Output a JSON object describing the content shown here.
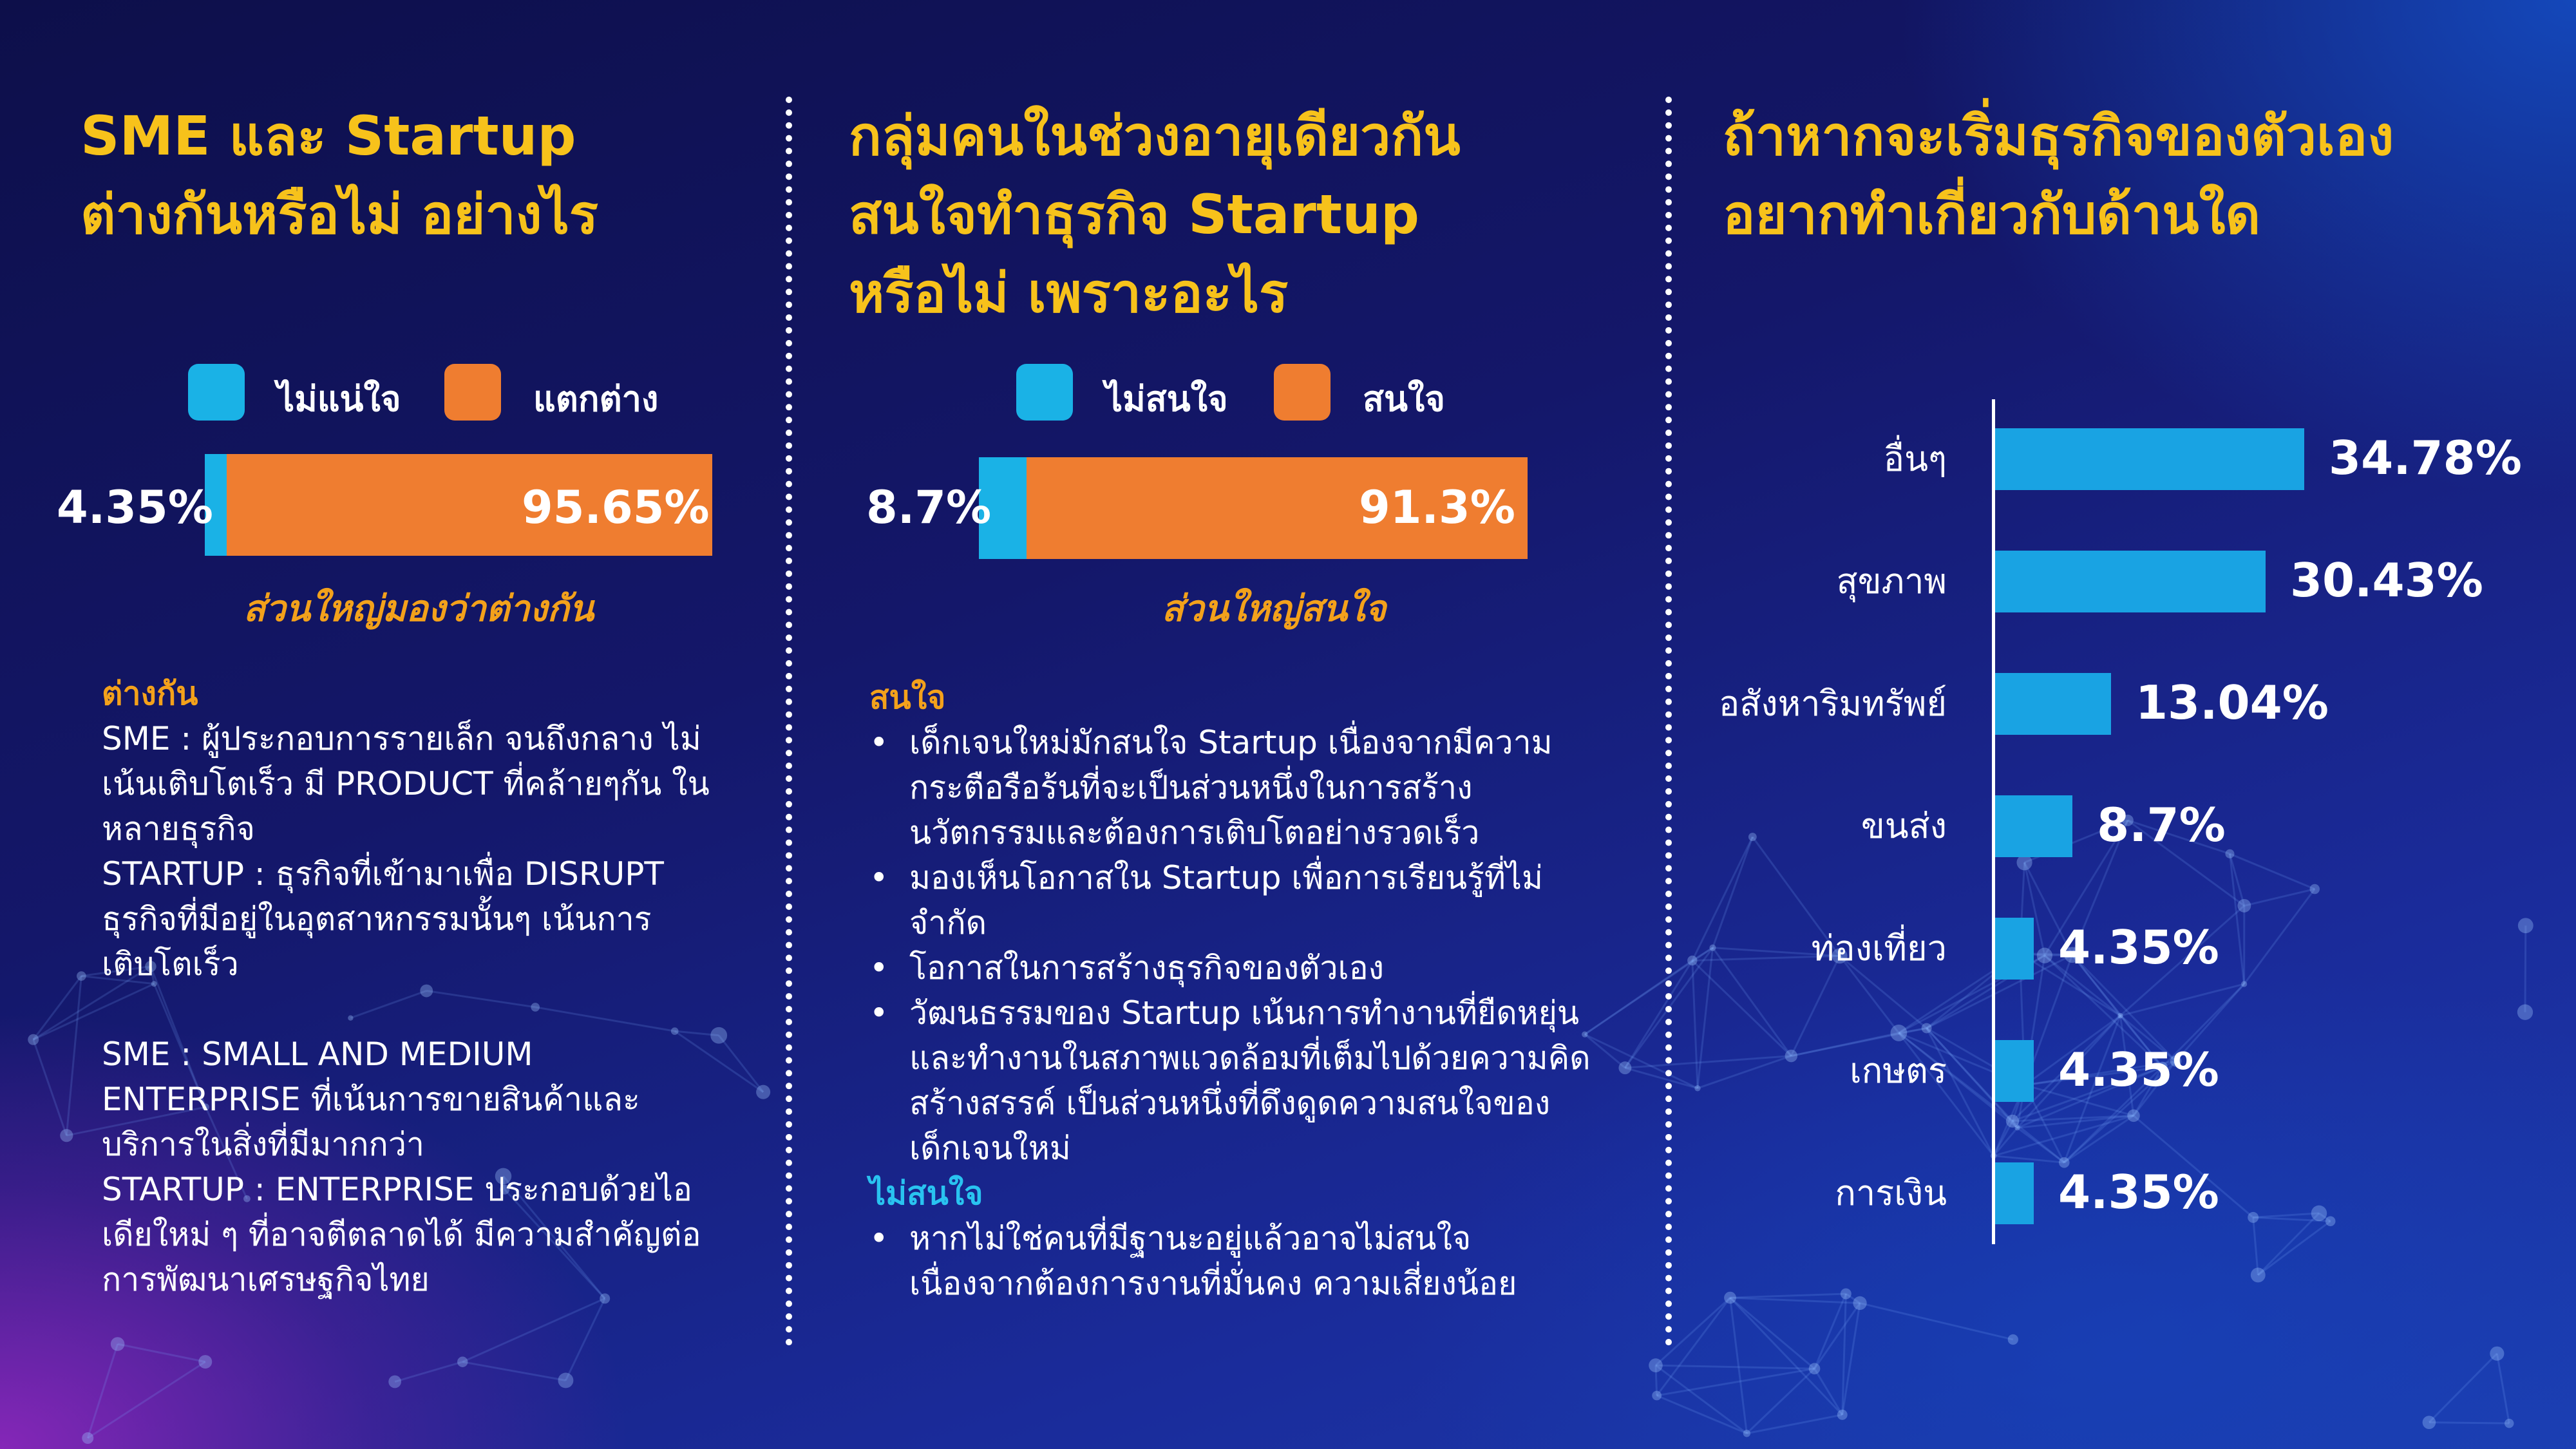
{
  "colors": {
    "heading": "#f7c21b",
    "cyan": "#1ab2e6",
    "orange": "#ef7d30",
    "bar_blue": "#19a3e3",
    "note_orange": "#f3a11b"
  },
  "left": {
    "title_line1": "SME และ Startup",
    "title_line2": "ต่างกันหรือไม่ อย่างไร",
    "note": "ส่วนใหญ่มองว่าต่างกัน",
    "section_heading": "ต่างกัน",
    "paragraphs": [
      "SME : ผู้ประกอบการรายเล็ก จนถึงกลาง ไม่เน้นเติบโตเร็ว มี PRODUCT ที่คล้ายๆกัน ในหลายธุรกิจ",
      "STARTUP : ธุรกิจที่เข้ามาเพื่อ DISRUPT ธุรกิจที่มีอยู่ในอุตสาหกรรมนั้นๆ เน้นการเติบโตเร็ว",
      "SME : SMALL AND MEDIUM ENTERPRISE ที่เน้นการขายสินค้าและบริการในสิ่งที่มีมากกว่า",
      "STARTUP : ENTERPRISE ประกอบด้วยไอเดียใหม่ ๆ ที่อาจตีตลาดได้ มีความสำคัญต่อการพัฒนาเศรษฐกิจไทย"
    ]
  },
  "middle": {
    "title_line1": "กลุ่มคนในช่วงอายุเดียวกัน",
    "title_line2": "สนใจทำธุรกิจ Startup",
    "title_line3": "หรือไม่ เพราะอะไร",
    "note": "ส่วนใหญ่สนใจ",
    "interested_heading": "สนใจ",
    "interested_bullets": [
      "เด็กเจนใหม่มักสนใจ Startup เนื่องจากมีความกระตือรือร้นที่จะเป็นส่วนหนึ่งในการสร้างนวัตกรรมและต้องการเติบโตอย่างรวดเร็ว",
      "มองเห็นโอกาสใน Startup เพื่อการเรียนรู้ที่ไม่จำกัด",
      "โอกาสในการสร้างธุรกิจของตัวเอง",
      "วัฒนธรรมของ Startup เน้นการทำงานที่ยืดหยุ่น และทำงานในสภาพแวดล้อมที่เต็มไปด้วยความคิดสร้างสรรค์ เป็นส่วนหนึ่งที่ดึงดูดความสนใจของเด็กเจนใหม่"
    ],
    "not_interested_heading": "ไม่สนใจ",
    "not_interested_bullets": [
      "หากไม่ใช่คนที่มีฐานะอยู่แล้วอาจไม่สนใจ เนื่องจากต้องการงานที่มั่นคง ความเสี่ยงน้อย"
    ]
  },
  "right": {
    "title_line1": "ถ้าหากจะเริ่มธุรกิจของตัวเอง",
    "title_line2": "อยากทำเกี่ยวกับด้านใด"
  },
  "chart_data": [
    {
      "type": "bar",
      "orientation": "horizontal",
      "stacked": true,
      "series": [
        {
          "name": "ไม่แน่ใจ",
          "values": [
            4.35
          ],
          "label": "4.35%",
          "color": "#1ab2e6"
        },
        {
          "name": "แตกต่าง",
          "values": [
            95.65
          ],
          "label": "95.65%",
          "color": "#ef7d30"
        }
      ],
      "xlim": [
        0,
        100
      ],
      "legend": "top"
    },
    {
      "type": "bar",
      "orientation": "horizontal",
      "stacked": true,
      "series": [
        {
          "name": "ไม่สนใจ",
          "values": [
            8.7
          ],
          "label": "8.7%",
          "color": "#1ab2e6"
        },
        {
          "name": "สนใจ",
          "values": [
            91.3
          ],
          "label": "91.3%",
          "color": "#ef7d30"
        }
      ],
      "xlim": [
        0,
        100
      ],
      "legend": "top"
    },
    {
      "type": "bar",
      "orientation": "horizontal",
      "categories": [
        "อื่นๆ",
        "สุขภาพ",
        "อสังหาริมทรัพย์",
        "ขนส่ง",
        "ท่องเที่ยว",
        "เกษตร",
        "การเงิน"
      ],
      "values": [
        34.78,
        30.43,
        13.04,
        8.7,
        4.35,
        4.35,
        4.35
      ],
      "labels": [
        "34.78%",
        "30.43%",
        "13.04%",
        "8.7%",
        "4.35%",
        "4.35%",
        "4.35%"
      ],
      "xlim": [
        0,
        50
      ],
      "color": "#19a3e3"
    }
  ]
}
